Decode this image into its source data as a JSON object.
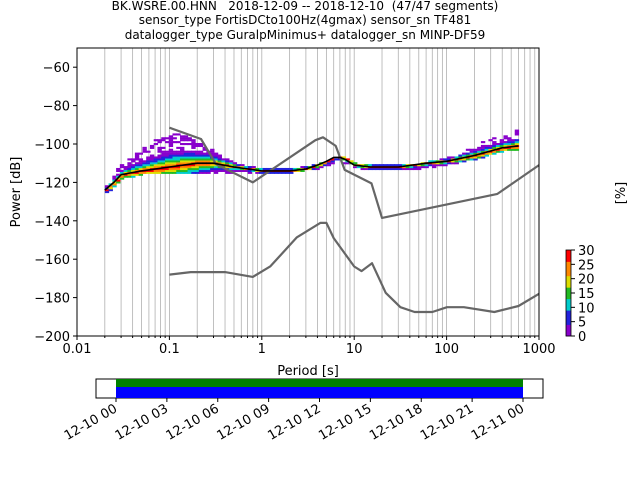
{
  "header": {
    "title_lines": [
      "BK.WSRE.00.HNN   2018-12-09 -- 2018-12-10  (47/47 segments)",
      "sensor_type FortisDCto100Hz(4gmax) sensor_sn TF481",
      "datalogger_type GuralpMinimus+ datalogger_sn MINP-DF59"
    ]
  },
  "chart_data": [
    {
      "type": "heatmap",
      "title": "BK.WSRE.00.HNN   2018-12-09 -- 2018-12-10  (47/47 segments)",
      "xlabel": "Period [s]",
      "ylabel": "Power [dB]",
      "xscale": "log",
      "xlim": [
        0.01,
        1000
      ],
      "ylim": [
        -200,
        -50
      ],
      "x_ticks": [
        "0.01",
        "0.1",
        "1",
        "10",
        "100",
        "1000"
      ],
      "y_ticks": [
        "−200",
        "−180",
        "−160",
        "−140",
        "−120",
        "−100",
        "−80",
        "−60"
      ],
      "grid": "vertical lines at log-decade minor/major ticks",
      "colorbar": {
        "label": "[%]",
        "ticks": [
          "0",
          "5",
          "10",
          "15",
          "20",
          "25",
          "30"
        ],
        "range": [
          0,
          30
        ],
        "colormap": [
          "#ffffff",
          "#8800cc",
          "#2222dd",
          "#00cccc",
          "#22bb22",
          "#dddd00",
          "#ff8800",
          "#ff0000"
        ]
      },
      "colors": {
        "noise_models": "#666666",
        "mode_curve": "#000000"
      },
      "series": [
        {
          "name": "",
          "role": "new_high_noise_model",
          "x": [
            0.1,
            0.22,
            0.32,
            0.8,
            3.8,
            4.6,
            6.3,
            7.9,
            15.4,
            20,
            354.8,
            1000
          ],
          "y": [
            -91.5,
            -97.4,
            -110.5,
            -120,
            -98,
            -96.5,
            -101,
            -113.5,
            -120.5,
            -138.5,
            -126,
            -111
          ]
        },
        {
          "name": "",
          "role": "new_low_noise_model",
          "x": [
            0.1,
            0.17,
            0.4,
            0.8,
            1.24,
            2.4,
            4.3,
            5,
            6,
            10,
            12,
            15.6,
            21.9,
            31.6,
            45,
            70,
            101,
            154,
            328,
            600,
            1000
          ],
          "y": [
            -168,
            -166.7,
            -166.7,
            -169.2,
            -163.7,
            -148.6,
            -141.1,
            -141.1,
            -149,
            -163.8,
            -166.2,
            -162.1,
            -177.5,
            -185,
            -187.5,
            -187.5,
            -185,
            -185,
            -187.5,
            -184.4,
            -178
          ]
        },
        {
          "name": "",
          "role": "mode",
          "x": [
            0.02,
            0.025,
            0.03,
            0.05,
            0.1,
            0.2,
            0.3,
            0.5,
            1,
            2,
            3,
            4,
            5,
            6,
            7,
            8,
            10,
            15,
            30,
            60,
            100,
            200,
            400,
            600
          ],
          "y": [
            -124,
            -120,
            -116,
            -114,
            -112,
            -110,
            -110,
            -112,
            -114,
            -114,
            -113,
            -111,
            -109,
            -107,
            -107,
            -108,
            -111,
            -112,
            -112,
            -110,
            -109,
            -106,
            -102,
            -101
          ]
        }
      ],
      "psd_envelope": {
        "x": [
          0.02,
          0.025,
          0.03,
          0.05,
          0.07,
          0.1,
          0.15,
          0.2,
          0.3,
          0.5,
          1,
          2,
          4,
          7,
          10,
          20,
          50,
          100,
          200,
          400,
          600
        ],
        "y_upper": [
          -122,
          -114,
          -110,
          -102,
          -97,
          -94,
          -96,
          -99,
          -104,
          -110,
          -113,
          -113,
          -110,
          -106,
          -110,
          -111,
          -110,
          -107,
          -100,
          -95,
          -92
        ],
        "y_lower": [
          -126,
          -122,
          -118,
          -116,
          -115,
          -115,
          -115,
          -115,
          -115,
          -115,
          -115,
          -115,
          -113,
          -110,
          -113,
          -113,
          -113,
          -111,
          -108,
          -104,
          -103
        ]
      }
    },
    {
      "type": "bar",
      "role": "data_availability",
      "x_ticks": [
        "12-10 00",
        "12-10 03",
        "12-10 06",
        "12-10 09",
        "12-10 12",
        "12-10 15",
        "12-10 18",
        "12-10 21",
        "12-11 00"
      ],
      "coverage_hours": [
        0,
        24
      ],
      "colors": {
        "top": "#008000",
        "bottom": "#0000ff"
      }
    }
  ]
}
